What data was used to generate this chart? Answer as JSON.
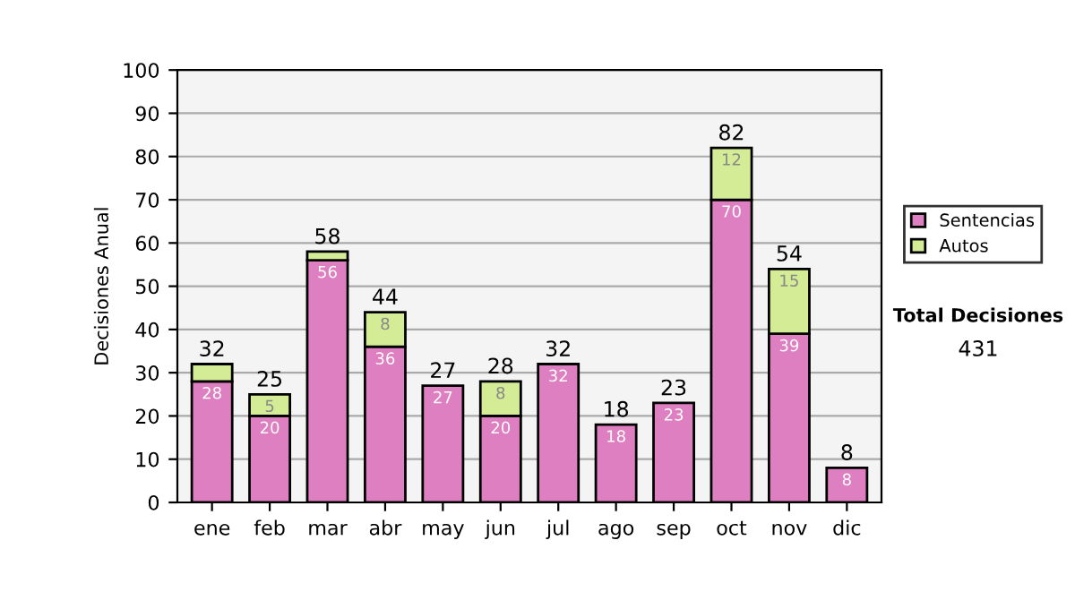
{
  "chart_data": {
    "type": "bar",
    "stacked": true,
    "ylabel": "Decisiones Anual",
    "categories": [
      "ene",
      "feb",
      "mar",
      "abr",
      "may",
      "jun",
      "jul",
      "ago",
      "sep",
      "oct",
      "nov",
      "dic"
    ],
    "series": [
      {
        "name": "Sentencias",
        "color": "#dd7fc0",
        "values": [
          28,
          20,
          56,
          36,
          27,
          20,
          32,
          18,
          23,
          70,
          39,
          8
        ],
        "value_labels": [
          "28",
          "20",
          "56",
          "36",
          "27",
          "20",
          "32",
          "18",
          "23",
          "70",
          "39",
          "8"
        ]
      },
      {
        "name": "Autos",
        "color": "#d4ec96",
        "values": [
          4,
          5,
          2,
          8,
          null,
          8,
          null,
          null,
          null,
          12,
          15,
          null
        ],
        "value_labels": [
          null,
          "5",
          null,
          "8",
          null,
          "8",
          null,
          null,
          null,
          "12",
          "15",
          null
        ]
      }
    ],
    "totals": [
      "32",
      "25",
      "58",
      "44",
      "27",
      "28",
      "32",
      "18",
      "23",
      "82",
      "54",
      "8"
    ],
    "ylim": [
      0,
      100
    ],
    "yticks": [
      0,
      10,
      20,
      30,
      40,
      50,
      60,
      70,
      80,
      90,
      100
    ],
    "grid": "y",
    "legend": "right",
    "annotations": [
      "Total Decisiones",
      "431"
    ]
  }
}
